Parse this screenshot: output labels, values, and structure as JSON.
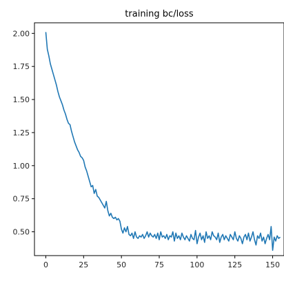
{
  "chart_data": {
    "type": "line",
    "title": "training bc/loss",
    "xlabel": "",
    "ylabel": "",
    "xlim": [
      -7.5,
      157.5
    ],
    "ylim": [
      0.32,
      2.08
    ],
    "x_ticks": [
      0,
      25,
      50,
      75,
      100,
      125,
      150
    ],
    "y_ticks": [
      0.5,
      0.75,
      1.0,
      1.25,
      1.5,
      1.75,
      2.0
    ],
    "x_tick_labels": [
      "0",
      "25",
      "50",
      "75",
      "100",
      "125",
      "150"
    ],
    "y_tick_labels": [
      "0.50",
      "0.75",
      "1.00",
      "1.25",
      "1.50",
      "1.75",
      "2.00"
    ],
    "grid": false,
    "series": [
      {
        "color": "#1f77b4",
        "x_start": 0,
        "x_step": 1,
        "values": [
          2.01,
          1.88,
          1.83,
          1.77,
          1.73,
          1.69,
          1.65,
          1.61,
          1.56,
          1.52,
          1.49,
          1.46,
          1.42,
          1.39,
          1.35,
          1.32,
          1.31,
          1.26,
          1.22,
          1.18,
          1.15,
          1.12,
          1.1,
          1.07,
          1.06,
          1.04,
          0.99,
          0.96,
          0.92,
          0.88,
          0.84,
          0.85,
          0.79,
          0.82,
          0.77,
          0.76,
          0.74,
          0.72,
          0.7,
          0.68,
          0.73,
          0.66,
          0.62,
          0.64,
          0.61,
          0.6,
          0.61,
          0.59,
          0.6,
          0.58,
          0.52,
          0.49,
          0.53,
          0.5,
          0.54,
          0.48,
          0.47,
          0.49,
          0.45,
          0.5,
          0.46,
          0.45,
          0.47,
          0.46,
          0.48,
          0.45,
          0.47,
          0.5,
          0.46,
          0.49,
          0.47,
          0.46,
          0.48,
          0.45,
          0.49,
          0.44,
          0.5,
          0.46,
          0.47,
          0.45,
          0.48,
          0.44,
          0.47,
          0.46,
          0.5,
          0.43,
          0.49,
          0.45,
          0.47,
          0.44,
          0.49,
          0.46,
          0.44,
          0.47,
          0.45,
          0.43,
          0.48,
          0.45,
          0.44,
          0.51,
          0.41,
          0.46,
          0.49,
          0.44,
          0.47,
          0.42,
          0.5,
          0.45,
          0.47,
          0.44,
          0.5,
          0.47,
          0.46,
          0.44,
          0.49,
          0.42,
          0.46,
          0.48,
          0.44,
          0.47,
          0.45,
          0.43,
          0.48,
          0.46,
          0.44,
          0.5,
          0.45,
          0.43,
          0.47,
          0.45,
          0.41,
          0.46,
          0.48,
          0.44,
          0.49,
          0.43,
          0.46,
          0.5,
          0.44,
          0.4,
          0.47,
          0.45,
          0.49,
          0.43,
          0.46,
          0.41,
          0.45,
          0.48,
          0.44,
          0.54,
          0.36,
          0.46,
          0.43,
          0.47,
          0.45,
          0.46
        ]
      }
    ]
  }
}
